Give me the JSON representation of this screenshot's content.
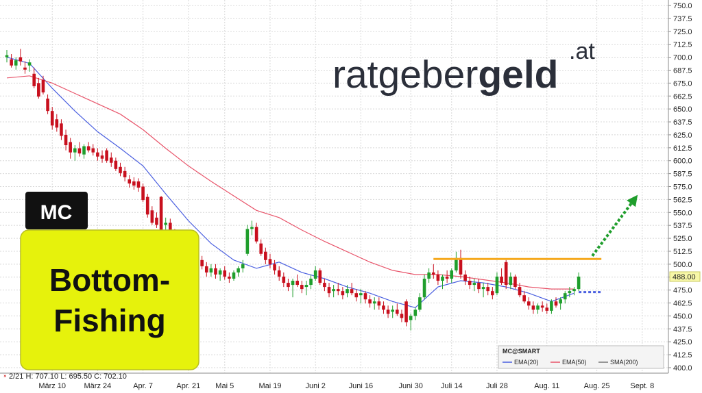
{
  "chart_data": {
    "type": "candlestick",
    "ylim": [
      400,
      750
    ],
    "yticks": [
      {
        "value": 750,
        "label": "750.0"
      },
      {
        "value": 737.5,
        "label": "737.5"
      },
      {
        "value": 725,
        "label": "725.0"
      },
      {
        "value": 712.5,
        "label": "712.5"
      },
      {
        "value": 700,
        "label": "700.0"
      },
      {
        "value": 687.5,
        "label": "687.5"
      },
      {
        "value": 675,
        "label": "675.0"
      },
      {
        "value": 662.5,
        "label": "662.5"
      },
      {
        "value": 650,
        "label": "650.0"
      },
      {
        "value": 637.5,
        "label": "637.5"
      },
      {
        "value": 625,
        "label": "625.0"
      },
      {
        "value": 612.5,
        "label": "612.5"
      },
      {
        "value": 600,
        "label": "600.0"
      },
      {
        "value": 587.5,
        "label": "587.5"
      },
      {
        "value": 575,
        "label": "575.0"
      },
      {
        "value": 562.5,
        "label": "562.5"
      },
      {
        "value": 550,
        "label": "550.0"
      },
      {
        "value": 537.5,
        "label": "537.5"
      },
      {
        "value": 525,
        "label": "525.0"
      },
      {
        "value": 512.5,
        "label": "512.5"
      },
      {
        "value": 500,
        "label": "500.0"
      },
      {
        "value": 487.5,
        "label": "487.5"
      },
      {
        "value": 475,
        "label": "475.0"
      },
      {
        "value": 462.5,
        "label": "462.5"
      },
      {
        "value": 450,
        "label": "450.0"
      },
      {
        "value": 437.5,
        "label": "437.5"
      },
      {
        "value": 425,
        "label": "425.0"
      },
      {
        "value": 412.5,
        "label": "412.5"
      },
      {
        "value": 400,
        "label": "400.0"
      }
    ],
    "grid": true,
    "categories": [
      null,
      null,
      null,
      null,
      null,
      null,
      null,
      null,
      null,
      null,
      "März 10",
      null,
      null,
      null,
      null,
      null,
      null,
      null,
      null,
      null,
      "März 24",
      null,
      null,
      null,
      null,
      null,
      null,
      null,
      null,
      null,
      "Apr. 7",
      null,
      null,
      null,
      null,
      null,
      null,
      null,
      null,
      null,
      "Apr. 21",
      null,
      null,
      null,
      null,
      null,
      null,
      null,
      "Mai 5",
      null,
      null,
      null,
      null,
      null,
      null,
      null,
      null,
      null,
      "Mai 19",
      null,
      null,
      null,
      null,
      null,
      null,
      null,
      null,
      null,
      "Juni 2",
      null,
      null,
      null,
      null,
      null,
      null,
      null,
      null,
      null,
      "Juni 16",
      null,
      null,
      null,
      null,
      null,
      null,
      null,
      null,
      null,
      null,
      "Juni 30",
      null,
      null,
      null,
      null,
      null,
      null,
      null,
      null,
      "Juli 14",
      null,
      null,
      null,
      null,
      null,
      null,
      null,
      null,
      null,
      "Juli 28",
      null,
      null,
      null,
      null,
      null,
      null,
      null,
      null,
      null,
      null,
      "Aug. 11",
      null,
      null,
      null,
      null,
      null,
      null,
      null,
      null,
      null,
      null,
      "Aug. 25",
      null,
      null,
      null,
      null,
      null,
      null,
      null,
      null,
      null,
      "Sept. 8",
      null,
      null,
      null,
      null
    ],
    "up_color": "#1f9e2c",
    "down_color": "#c8101e",
    "ohlc": [
      [
        700,
        707,
        695,
        702
      ],
      [
        698,
        703,
        690,
        692
      ],
      [
        692,
        700,
        688,
        697
      ],
      [
        700,
        708,
        692,
        696
      ],
      [
        690,
        696,
        684,
        688
      ],
      [
        692,
        698,
        686,
        695
      ],
      [
        684,
        690,
        670,
        672
      ],
      [
        675,
        680,
        660,
        662
      ],
      [
        678,
        682,
        664,
        666
      ],
      [
        660,
        664,
        645,
        648
      ],
      [
        648,
        652,
        630,
        634
      ],
      [
        640,
        645,
        628,
        632
      ],
      [
        636,
        640,
        620,
        624
      ],
      [
        625,
        630,
        610,
        615
      ],
      [
        618,
        622,
        602,
        608
      ],
      [
        608,
        615,
        600,
        612
      ],
      [
        612,
        618,
        604,
        607
      ],
      [
        606,
        616,
        602,
        614
      ],
      [
        614,
        618,
        608,
        610
      ],
      [
        612,
        616,
        605,
        608
      ],
      [
        608,
        612,
        600,
        604
      ],
      [
        605,
        610,
        598,
        602
      ],
      [
        610,
        612,
        598,
        600
      ],
      [
        603,
        608,
        594,
        598
      ],
      [
        600,
        603,
        590,
        592
      ],
      [
        594,
        598,
        585,
        588
      ],
      [
        590,
        594,
        580,
        584
      ],
      [
        582,
        586,
        574,
        578
      ],
      [
        580,
        584,
        572,
        576
      ],
      [
        580,
        583,
        570,
        574
      ],
      [
        575,
        578,
        560,
        562
      ],
      [
        565,
        568,
        545,
        548
      ],
      [
        552,
        556,
        538,
        540
      ],
      [
        545,
        550,
        535,
        538
      ],
      [
        565,
        566,
        528,
        530
      ],
      [
        538,
        545,
        530,
        540
      ],
      [
        540,
        544,
        525,
        528
      ],
      [
        530,
        534,
        515,
        518
      ],
      [
        520,
        524,
        508,
        512
      ],
      [
        512,
        518,
        500,
        504
      ],
      [
        505,
        510,
        495,
        500
      ],
      [
        500,
        505,
        492,
        496
      ],
      [
        496,
        506,
        494,
        504
      ],
      [
        504,
        508,
        495,
        498
      ],
      [
        498,
        502,
        488,
        492
      ],
      [
        492,
        500,
        488,
        496
      ],
      [
        496,
        500,
        486,
        490
      ],
      [
        490,
        496,
        484,
        494
      ],
      [
        494,
        498,
        485,
        488
      ],
      [
        488,
        492,
        482,
        486
      ],
      [
        486,
        494,
        484,
        492
      ],
      [
        492,
        498,
        488,
        496
      ],
      [
        496,
        504,
        492,
        500
      ],
      [
        510,
        538,
        508,
        534
      ],
      [
        534,
        542,
        528,
        536
      ],
      [
        536,
        540,
        520,
        522
      ],
      [
        520,
        524,
        508,
        510
      ],
      [
        512,
        516,
        500,
        504
      ],
      [
        505,
        510,
        496,
        500
      ],
      [
        500,
        504,
        490,
        494
      ],
      [
        494,
        498,
        484,
        488
      ],
      [
        488,
        492,
        478,
        482
      ],
      [
        482,
        486,
        474,
        478
      ],
      [
        480,
        486,
        468,
        484
      ],
      [
        484,
        490,
        478,
        480
      ],
      [
        480,
        484,
        472,
        476
      ],
      [
        478,
        484,
        470,
        480
      ],
      [
        480,
        490,
        476,
        486
      ],
      [
        486,
        498,
        484,
        494
      ],
      [
        494,
        496,
        480,
        482
      ],
      [
        482,
        486,
        474,
        478
      ],
      [
        478,
        482,
        468,
        472
      ],
      [
        474,
        480,
        468,
        476
      ],
      [
        476,
        482,
        470,
        474
      ],
      [
        474,
        478,
        466,
        470
      ],
      [
        472,
        480,
        468,
        476
      ],
      [
        476,
        482,
        470,
        472
      ],
      [
        472,
        476,
        464,
        468
      ],
      [
        470,
        476,
        462,
        472
      ],
      [
        472,
        474,
        462,
        466
      ],
      [
        466,
        470,
        458,
        462
      ],
      [
        462,
        468,
        456,
        464
      ],
      [
        464,
        468,
        456,
        460
      ],
      [
        460,
        464,
        452,
        456
      ],
      [
        456,
        460,
        448,
        452
      ],
      [
        454,
        460,
        448,
        456
      ],
      [
        456,
        462,
        450,
        452
      ],
      [
        452,
        456,
        444,
        448
      ],
      [
        464,
        466,
        440,
        444
      ],
      [
        446,
        452,
        436,
        450
      ],
      [
        450,
        458,
        446,
        456
      ],
      [
        456,
        472,
        454,
        468
      ],
      [
        468,
        490,
        466,
        486
      ],
      [
        486,
        496,
        482,
        492
      ],
      [
        492,
        500,
        486,
        490
      ],
      [
        490,
        494,
        480,
        484
      ],
      [
        484,
        490,
        476,
        488
      ],
      [
        488,
        494,
        482,
        486
      ],
      [
        486,
        496,
        482,
        494
      ],
      [
        494,
        512,
        492,
        506
      ],
      [
        506,
        514,
        486,
        490
      ],
      [
        490,
        494,
        480,
        484
      ],
      [
        484,
        488,
        476,
        480
      ],
      [
        480,
        486,
        474,
        482
      ],
      [
        482,
        486,
        472,
        476
      ],
      [
        476,
        482,
        468,
        478
      ],
      [
        478,
        482,
        470,
        474
      ],
      [
        474,
        478,
        466,
        470
      ],
      [
        472,
        492,
        470,
        488
      ],
      [
        488,
        496,
        480,
        482
      ],
      [
        502,
        504,
        476,
        480
      ],
      [
        480,
        492,
        476,
        488
      ],
      [
        488,
        490,
        476,
        478
      ],
      [
        478,
        482,
        468,
        470
      ],
      [
        470,
        474,
        462,
        464
      ],
      [
        464,
        468,
        456,
        460
      ],
      [
        460,
        464,
        452,
        456
      ],
      [
        456,
        462,
        452,
        460
      ],
      [
        460,
        464,
        454,
        458
      ],
      [
        458,
        462,
        452,
        455
      ],
      [
        455,
        466,
        452,
        464
      ],
      [
        464,
        468,
        458,
        460
      ],
      [
        462,
        468,
        456,
        466
      ],
      [
        466,
        474,
        462,
        472
      ],
      [
        472,
        478,
        468,
        474
      ],
      [
        474,
        478,
        470,
        476
      ],
      [
        476,
        492,
        474,
        488
      ],
      null,
      null,
      null,
      null,
      null,
      null,
      null,
      null,
      null,
      null,
      null,
      null,
      null,
      null,
      null,
      null,
      null,
      null
    ],
    "lines": [
      {
        "name": "EMA(20)",
        "color": "#4a5fe0",
        "x": [
          0,
          5,
          10,
          15,
          20,
          25,
          30,
          35,
          40,
          45,
          50,
          55,
          60,
          65,
          70,
          75,
          80,
          85,
          90,
          95,
          100,
          105,
          110,
          115,
          120,
          125
        ],
        "values": [
          700,
          694,
          670,
          648,
          628,
          612,
          595,
          568,
          542,
          520,
          504,
          496,
          502,
          492,
          486,
          478,
          472,
          464,
          458,
          478,
          484,
          482,
          478,
          472,
          464,
          472
        ]
      },
      {
        "name": "EMA(50)",
        "color": "#e8546a",
        "x": [
          0,
          5,
          10,
          15,
          20,
          25,
          30,
          35,
          40,
          45,
          50,
          55,
          60,
          65,
          70,
          75,
          80,
          85,
          90,
          95,
          100,
          105,
          110,
          115,
          120,
          125
        ],
        "values": [
          680,
          682,
          675,
          665,
          655,
          645,
          630,
          612,
          595,
          580,
          566,
          552,
          545,
          533,
          522,
          512,
          502,
          494,
          490,
          490,
          488,
          485,
          482,
          478,
          476,
          476
        ]
      },
      {
        "name": "SMA(200)",
        "color": "#777777"
      }
    ],
    "legend_title": "MC@SMART",
    "last_price": {
      "value": 488,
      "label": "488.00"
    },
    "resistance": {
      "value": 505,
      "x": [
        94,
        131
      ],
      "color": "#f5a81c"
    },
    "support_extension": {
      "value": 473,
      "x": [
        126,
        131
      ],
      "color": "#4a5fe0"
    },
    "arrow": {
      "from": [
        129,
        508
      ],
      "to": [
        139,
        567
      ],
      "color": "#1f9e2c"
    },
    "info": "2/21  H: 707.10  L: 695.50  C: 702.10",
    "brand": {
      "light": "ratgeber",
      "bold": "geld",
      "suffix": ".at"
    },
    "badge": "MC",
    "headline": [
      "Bottom-",
      "Fishing"
    ]
  }
}
